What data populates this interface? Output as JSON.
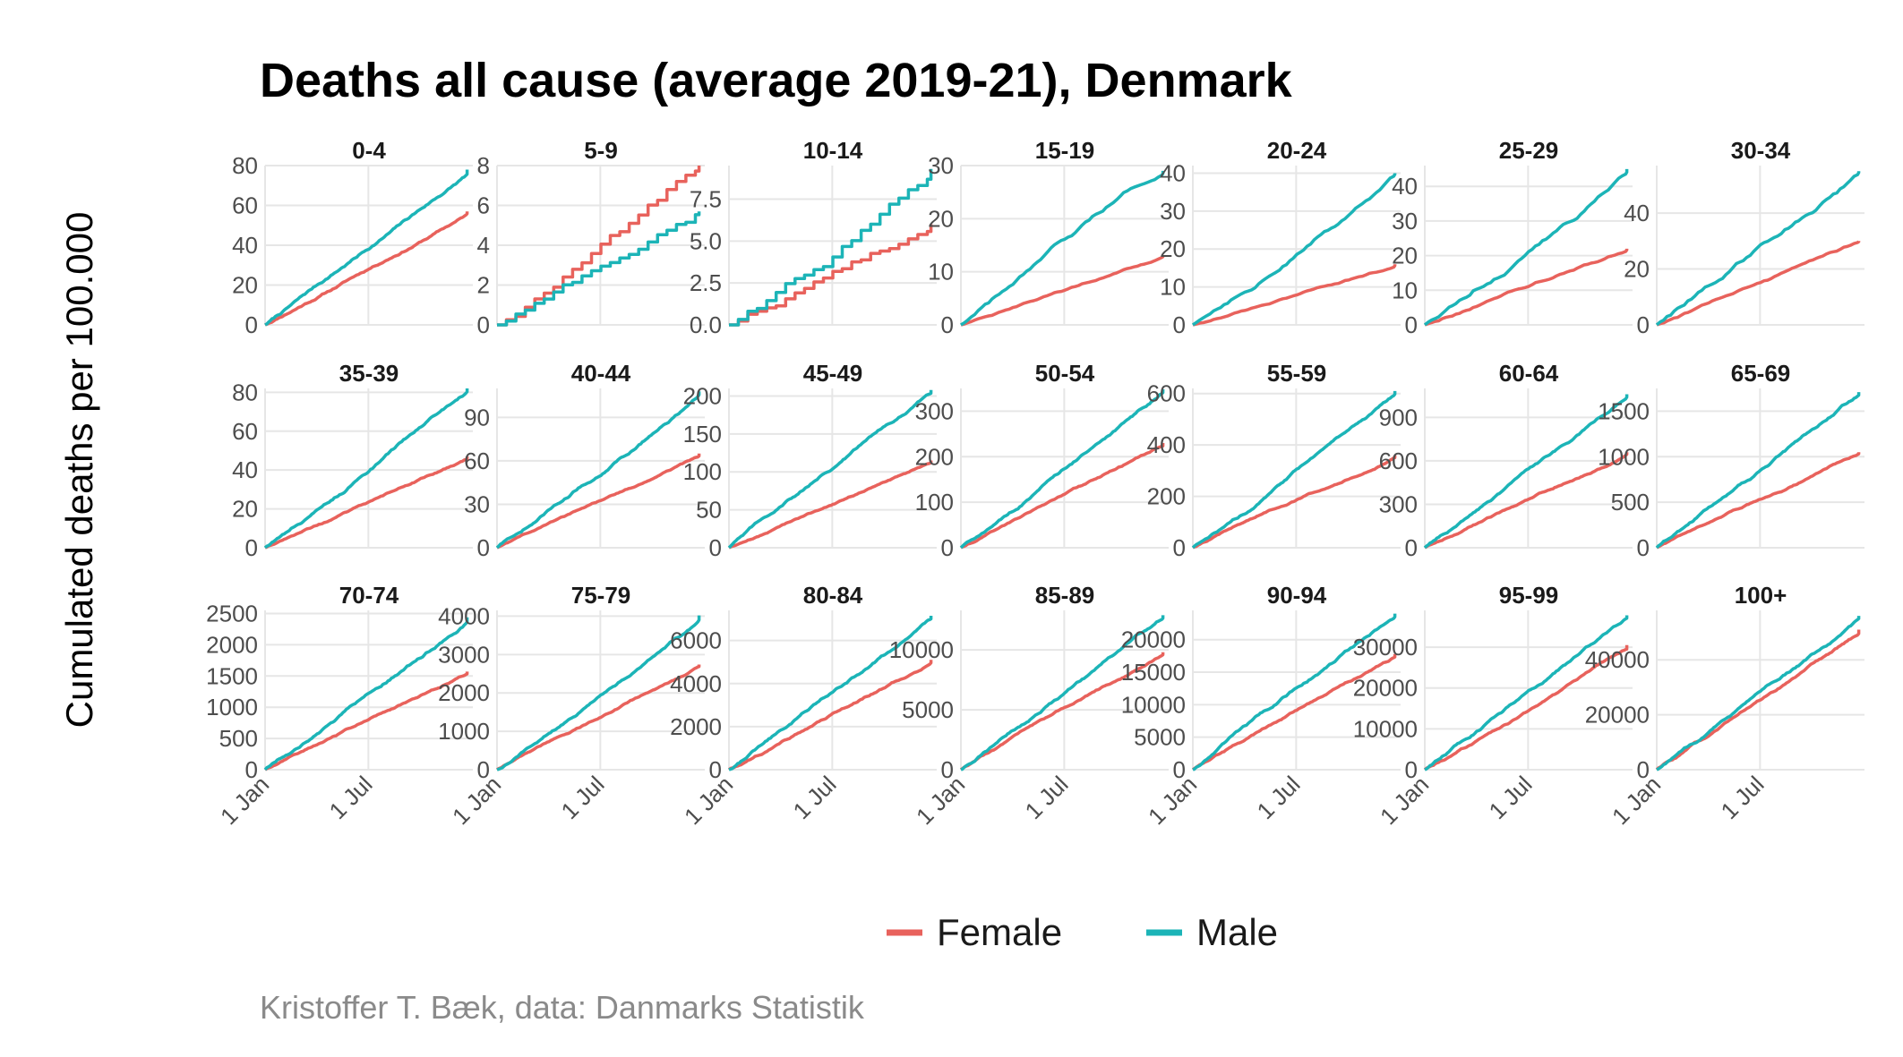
{
  "chart_data": {
    "type": "line",
    "title": "Deaths all cause (average 2019-21), Denmark",
    "ylabel": "Cumulated deaths per 100.000",
    "caption": "Kristoffer T. Bæk, data: Danmarks Statistik",
    "legend": {
      "position": "bottom",
      "entries": [
        {
          "name": "Female",
          "color": "#E8625C"
        },
        {
          "name": "Male",
          "color": "#1CB4B7"
        }
      ]
    },
    "grid": true,
    "x_ticks": [
      "1 Jan",
      "1 Jul"
    ],
    "x_tick_values": [
      1,
      182
    ],
    "x_range": [
      1,
      365
    ],
    "facets": [
      {
        "label": "0-4",
        "ylim": [
          0,
          80
        ],
        "yticks": [
          0,
          20,
          40,
          60,
          80
        ],
        "tick_labels": [
          "0",
          "20",
          "40",
          "60",
          "80"
        ],
        "female_end": 57,
        "male_end": 78
      },
      {
        "label": "5-9",
        "ylim": [
          0,
          8
        ],
        "yticks": [
          0,
          2,
          4,
          6,
          8
        ],
        "tick_labels": [
          "0",
          "2",
          "4",
          "6",
          "8"
        ],
        "female_end": 8,
        "male_end": 5.7
      },
      {
        "label": "10-14",
        "ylim": [
          0,
          9.5
        ],
        "yticks": [
          0,
          2.5,
          5,
          7.5
        ],
        "tick_labels": [
          "0.0",
          "2.5",
          "5.0",
          "7.5"
        ],
        "female_end": 6,
        "male_end": 9.3
      },
      {
        "label": "15-19",
        "ylim": [
          0,
          30
        ],
        "yticks": [
          0,
          10,
          20,
          30
        ],
        "tick_labels": [
          "0",
          "10",
          "20",
          "30"
        ],
        "female_end": 13,
        "male_end": 29
      },
      {
        "label": "20-24",
        "ylim": [
          0,
          42
        ],
        "yticks": [
          0,
          10,
          20,
          30,
          40
        ],
        "tick_labels": [
          "0",
          "10",
          "20",
          "30",
          "40"
        ],
        "female_end": 16,
        "male_end": 40
      },
      {
        "label": "25-29",
        "ylim": [
          0,
          46
        ],
        "yticks": [
          0,
          10,
          20,
          30,
          40
        ],
        "tick_labels": [
          "0",
          "10",
          "20",
          "30",
          "40"
        ],
        "female_end": 22,
        "male_end": 45
      },
      {
        "label": "30-34",
        "ylim": [
          0,
          57
        ],
        "yticks": [
          0,
          20,
          40
        ],
        "tick_labels": [
          "0",
          "20",
          "40"
        ],
        "female_end": 30,
        "male_end": 55
      },
      {
        "label": "35-39",
        "ylim": [
          0,
          82
        ],
        "yticks": [
          0,
          20,
          40,
          60,
          80
        ],
        "tick_labels": [
          "0",
          "20",
          "40",
          "60",
          "80"
        ],
        "female_end": 47,
        "male_end": 82
      },
      {
        "label": "40-44",
        "ylim": [
          0,
          110
        ],
        "yticks": [
          0,
          30,
          60,
          90
        ],
        "tick_labels": [
          "0",
          "30",
          "60",
          "90"
        ],
        "female_end": 65,
        "male_end": 108
      },
      {
        "label": "45-49",
        "ylim": [
          0,
          210
        ],
        "yticks": [
          0,
          50,
          100,
          150,
          200
        ],
        "tick_labels": [
          "0",
          "50",
          "100",
          "150",
          "200"
        ],
        "female_end": 115,
        "male_end": 208
      },
      {
        "label": "50-54",
        "ylim": [
          0,
          350
        ],
        "yticks": [
          0,
          100,
          200,
          300
        ],
        "tick_labels": [
          "0",
          "100",
          "200",
          "300"
        ],
        "female_end": 230,
        "male_end": 348
      },
      {
        "label": "55-59",
        "ylim": [
          0,
          620
        ],
        "yticks": [
          0,
          200,
          400,
          600
        ],
        "tick_labels": [
          "0",
          "200",
          "400",
          "600"
        ],
        "female_end": 360,
        "male_end": 610
      },
      {
        "label": "60-64",
        "ylim": [
          0,
          1100
        ],
        "yticks": [
          0,
          300,
          600,
          900
        ],
        "tick_labels": [
          "0",
          "300",
          "600",
          "900"
        ],
        "female_end": 660,
        "male_end": 1060
      },
      {
        "label": "65-69",
        "ylim": [
          0,
          1750
        ],
        "yticks": [
          0,
          500,
          1000,
          1500
        ],
        "tick_labels": [
          "0",
          "500",
          "1000",
          "1500"
        ],
        "female_end": 1050,
        "male_end": 1710
      },
      {
        "label": "70-74",
        "ylim": [
          0,
          2550
        ],
        "yticks": [
          0,
          500,
          1000,
          1500,
          2000,
          2500
        ],
        "tick_labels": [
          "0",
          "500",
          "1000",
          "1500",
          "2000",
          "2500"
        ],
        "female_end": 1570,
        "male_end": 2440
      },
      {
        "label": "75-79",
        "ylim": [
          0,
          4150
        ],
        "yticks": [
          0,
          1000,
          2000,
          3000,
          4000
        ],
        "tick_labels": [
          "0",
          "1000",
          "2000",
          "3000",
          "4000"
        ],
        "female_end": 2740,
        "male_end": 4020
      },
      {
        "label": "80-84",
        "ylim": [
          0,
          7400
        ],
        "yticks": [
          0,
          2000,
          4000,
          6000
        ],
        "tick_labels": [
          "0",
          "2000",
          "4000",
          "6000"
        ],
        "female_end": 5100,
        "male_end": 7150
      },
      {
        "label": "85-89",
        "ylim": [
          0,
          13300
        ],
        "yticks": [
          0,
          5000,
          10000
        ],
        "tick_labels": [
          "0",
          "5000",
          "10000"
        ],
        "female_end": 9800,
        "male_end": 12900
      },
      {
        "label": "90-94",
        "ylim": [
          0,
          24500
        ],
        "yticks": [
          0,
          5000,
          10000,
          15000,
          20000
        ],
        "tick_labels": [
          "0",
          "5000",
          "10000",
          "15000",
          "20000"
        ],
        "female_end": 17800,
        "male_end": 24000
      },
      {
        "label": "95-99",
        "ylim": [
          0,
          39000
        ],
        "yticks": [
          0,
          10000,
          20000,
          30000
        ],
        "tick_labels": [
          "0",
          "10000",
          "20000",
          "30000"
        ],
        "female_end": 30500,
        "male_end": 37800
      },
      {
        "label": "100+",
        "ylim": [
          0,
          58000
        ],
        "yticks": [
          0,
          20000,
          40000
        ],
        "tick_labels": [
          "0",
          "20000",
          "40000"
        ],
        "female_end": 51000,
        "male_end": 56000
      }
    ]
  }
}
